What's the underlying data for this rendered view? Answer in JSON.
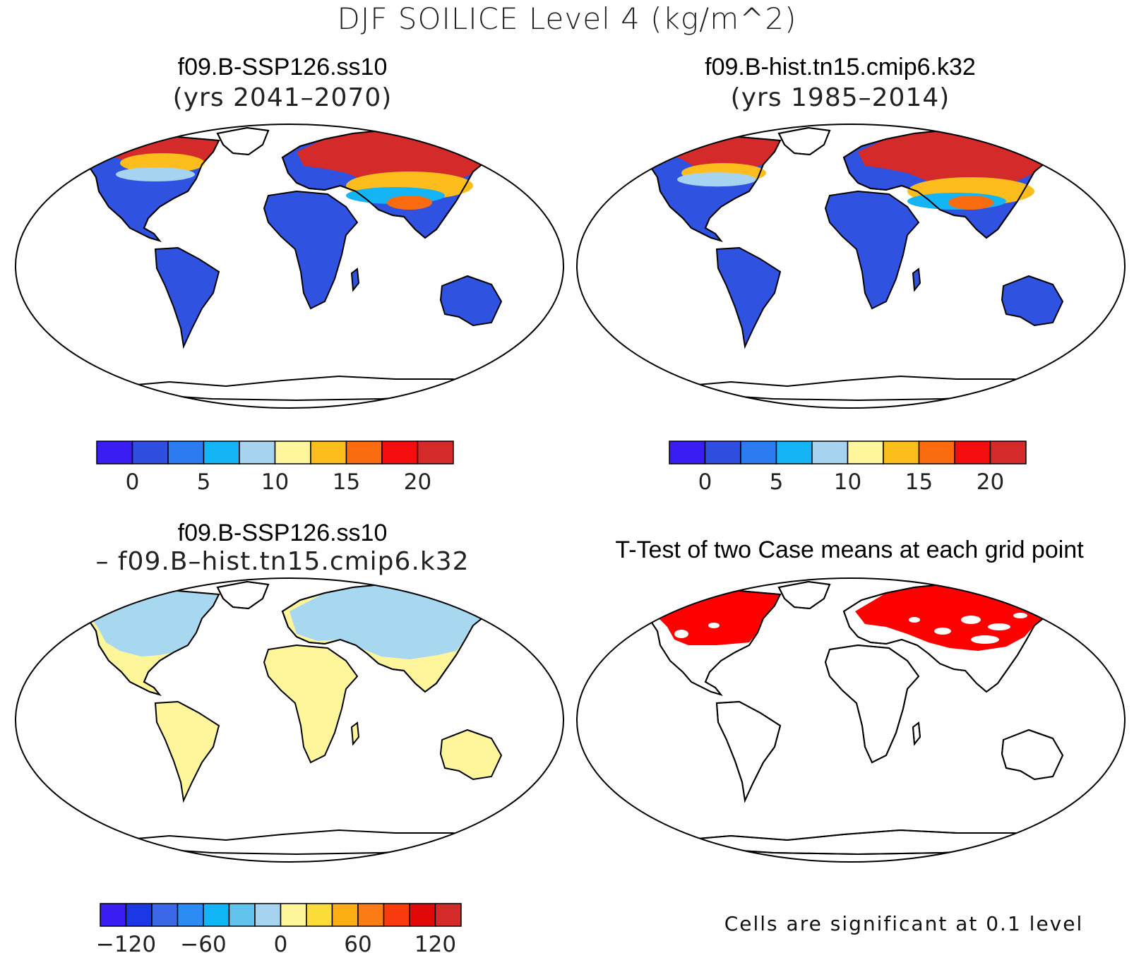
{
  "title": "DJF SOILICE Level 4 (kg/m^2)",
  "panels": [
    {
      "title": "f09.B-SSP126.ss10",
      "subtitle": "(yrs 2041–2070)"
    },
    {
      "title": "f09.B-hist.tn15.cmip6.k32",
      "subtitle": "(yrs 1985–2014)"
    },
    {
      "title": "f09.B-SSP126.ss10",
      "subtitle": "– f09.B–hist.tn15.cmip6.k32"
    },
    {
      "title": "T-Test of two Case means at each grid point",
      "subtitle": ""
    }
  ],
  "note": "Cells are significant at 0.1 level",
  "colors": {
    "land_low": "#3052e0",
    "ice_high": "#d42a2a",
    "diff_pos": "#fff59a",
    "diff_neg": "#a8d8f0",
    "significant": "#ff0000",
    "coast": "#000000"
  },
  "chart_data": [
    {
      "type": "heatmap",
      "title": "f09.B-SSP126.ss10",
      "subtitle": "(yrs 2041–2070)",
      "colorbar": {
        "colors": [
          "#3a1df2",
          "#2f4fe0",
          "#2a7cf0",
          "#14b4f5",
          "#a6d4f0",
          "#fff59a",
          "#fdbd1c",
          "#fb6c10",
          "#f40d0d",
          "#d42a2a"
        ],
        "ticks": [
          "0",
          "5",
          "10",
          "15",
          "20"
        ],
        "tick_values": [
          0,
          5,
          10,
          15,
          20
        ],
        "range": [
          -2.5,
          22.5
        ]
      }
    },
    {
      "type": "heatmap",
      "title": "f09.B-hist.tn15.cmip6.k32",
      "subtitle": "(yrs 1985–2014)",
      "colorbar": {
        "colors": [
          "#3a1df2",
          "#2f4fe0",
          "#2a7cf0",
          "#14b4f5",
          "#a6d4f0",
          "#fff59a",
          "#fdbd1c",
          "#fb6c10",
          "#f40d0d",
          "#d42a2a"
        ],
        "ticks": [
          "0",
          "5",
          "10",
          "15",
          "20"
        ],
        "tick_values": [
          0,
          5,
          10,
          15,
          20
        ],
        "range": [
          -2.5,
          22.5
        ]
      }
    },
    {
      "type": "heatmap",
      "title": "f09.B-SSP126.ss10",
      "subtitle": "– f09.B–hist.tn15.cmip6.k32",
      "colorbar": {
        "colors": [
          "#3a1df2",
          "#1c38e6",
          "#3a68e6",
          "#2a8cf2",
          "#10b6f6",
          "#62c2ee",
          "#a6d4f0",
          "#fff59a",
          "#fcdc38",
          "#fcae14",
          "#fb7c14",
          "#f83a0c",
          "#e00808",
          "#d42a2a"
        ],
        "ticks": [
          "−120",
          "−60",
          "0",
          "60",
          "120"
        ],
        "tick_values": [
          -120,
          -60,
          0,
          60,
          120
        ],
        "range": [
          -140,
          140
        ]
      }
    },
    {
      "type": "heatmap",
      "title": "T-Test of two Case means at each grid point",
      "note": "Cells are significant at 0.1 level"
    }
  ]
}
